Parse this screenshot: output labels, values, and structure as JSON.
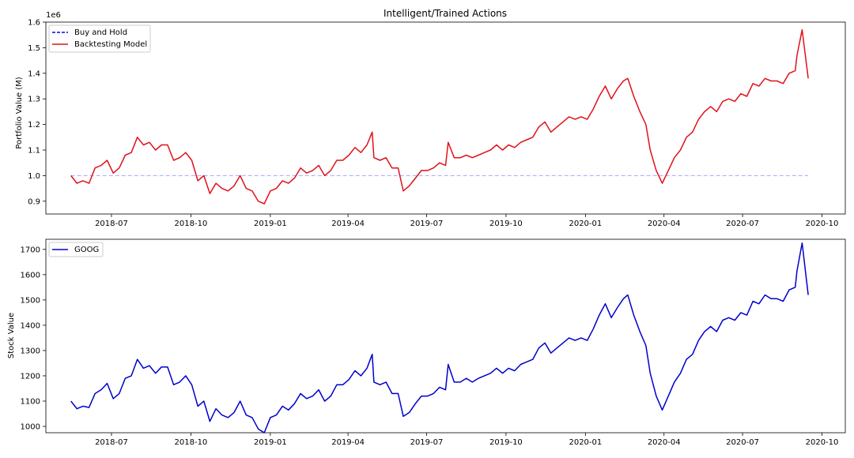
{
  "chart_data": [
    {
      "type": "line",
      "title": "Intelligent/Trained Actions",
      "xlabel": "",
      "ylabel": "Portfolio Value (M)",
      "y_offset_text": "1e6",
      "xlim": [
        "2018-04-16",
        "2020-10-28"
      ],
      "ylim": [
        0.85,
        1.6
      ],
      "x_ticks": [
        "2018-07",
        "2018-10",
        "2019-01",
        "2019-04",
        "2019-07",
        "2019-10",
        "2020-01",
        "2020-04",
        "2020-07",
        "2020-10"
      ],
      "y_ticks": [
        "0.9",
        "1.0",
        "1.1",
        "1.2",
        "1.3",
        "1.4",
        "1.5",
        "1.6"
      ],
      "y_tick_values": [
        0.9,
        1.0,
        1.1,
        1.2,
        1.3,
        1.4,
        1.5,
        1.6
      ],
      "grid": false,
      "legend_position": "top-left",
      "series": [
        {
          "name": "Buy and Hold",
          "color": "#0000ff",
          "style": "dashed",
          "x": [
            "2018-05-15",
            "2020-09-15"
          ],
          "y": [
            1.0,
            1.0
          ]
        },
        {
          "name": "Backtesting Model",
          "color": "#e0111a",
          "style": "solid",
          "x": [
            "2018-05-15",
            "2018-05-22",
            "2018-05-29",
            "2018-06-05",
            "2018-06-12",
            "2018-06-19",
            "2018-06-26",
            "2018-07-03",
            "2018-07-10",
            "2018-07-17",
            "2018-07-24",
            "2018-07-31",
            "2018-08-07",
            "2018-08-14",
            "2018-08-21",
            "2018-08-28",
            "2018-09-04",
            "2018-09-11",
            "2018-09-18",
            "2018-09-25",
            "2018-10-02",
            "2018-10-09",
            "2018-10-16",
            "2018-10-23",
            "2018-10-30",
            "2018-11-06",
            "2018-11-13",
            "2018-11-20",
            "2018-11-27",
            "2018-12-04",
            "2018-12-11",
            "2018-12-18",
            "2018-12-25",
            "2019-01-01",
            "2019-01-08",
            "2019-01-15",
            "2019-01-22",
            "2019-01-29",
            "2019-02-05",
            "2019-02-12",
            "2019-02-19",
            "2019-02-26",
            "2019-03-05",
            "2019-03-12",
            "2019-03-19",
            "2019-03-26",
            "2019-04-02",
            "2019-04-09",
            "2019-04-16",
            "2019-04-23",
            "2019-04-29",
            "2019-05-01",
            "2019-05-08",
            "2019-05-15",
            "2019-05-22",
            "2019-05-29",
            "2019-06-04",
            "2019-06-11",
            "2019-06-18",
            "2019-06-25",
            "2019-07-02",
            "2019-07-09",
            "2019-07-16",
            "2019-07-23",
            "2019-07-26",
            "2019-08-02",
            "2019-08-09",
            "2019-08-16",
            "2019-08-23",
            "2019-08-30",
            "2019-09-06",
            "2019-09-13",
            "2019-09-20",
            "2019-09-27",
            "2019-10-04",
            "2019-10-11",
            "2019-10-18",
            "2019-10-25",
            "2019-11-01",
            "2019-11-08",
            "2019-11-15",
            "2019-11-22",
            "2019-11-29",
            "2019-12-06",
            "2019-12-13",
            "2019-12-20",
            "2019-12-27",
            "2020-01-03",
            "2020-01-10",
            "2020-01-17",
            "2020-01-24",
            "2020-01-31",
            "2020-02-07",
            "2020-02-14",
            "2020-02-19",
            "2020-02-26",
            "2020-03-04",
            "2020-03-11",
            "2020-03-16",
            "2020-03-23",
            "2020-03-30",
            "2020-04-06",
            "2020-04-13",
            "2020-04-20",
            "2020-04-27",
            "2020-05-04",
            "2020-05-11",
            "2020-05-18",
            "2020-05-25",
            "2020-06-01",
            "2020-06-08",
            "2020-06-15",
            "2020-06-22",
            "2020-06-29",
            "2020-07-06",
            "2020-07-13",
            "2020-07-20",
            "2020-07-27",
            "2020-08-03",
            "2020-08-10",
            "2020-08-17",
            "2020-08-24",
            "2020-08-31",
            "2020-09-02",
            "2020-09-08",
            "2020-09-15"
          ],
          "y": [
            1.0,
            0.97,
            0.98,
            0.97,
            1.03,
            1.04,
            1.06,
            1.01,
            1.03,
            1.08,
            1.09,
            1.15,
            1.12,
            1.13,
            1.1,
            1.12,
            1.12,
            1.06,
            1.07,
            1.09,
            1.06,
            0.98,
            1.0,
            0.93,
            0.97,
            0.95,
            0.94,
            0.96,
            1.0,
            0.95,
            0.94,
            0.9,
            0.89,
            0.94,
            0.95,
            0.98,
            0.97,
            0.99,
            1.03,
            1.01,
            1.02,
            1.04,
            1.0,
            1.02,
            1.06,
            1.06,
            1.08,
            1.11,
            1.09,
            1.12,
            1.17,
            1.07,
            1.06,
            1.07,
            1.03,
            1.03,
            0.94,
            0.96,
            0.99,
            1.02,
            1.02,
            1.03,
            1.05,
            1.04,
            1.13,
            1.07,
            1.07,
            1.08,
            1.07,
            1.08,
            1.09,
            1.1,
            1.12,
            1.1,
            1.12,
            1.11,
            1.13,
            1.14,
            1.15,
            1.19,
            1.21,
            1.17,
            1.19,
            1.21,
            1.23,
            1.22,
            1.23,
            1.22,
            1.26,
            1.31,
            1.35,
            1.3,
            1.34,
            1.37,
            1.38,
            1.31,
            1.25,
            1.2,
            1.1,
            1.02,
            0.97,
            1.02,
            1.07,
            1.1,
            1.15,
            1.17,
            1.22,
            1.25,
            1.27,
            1.25,
            1.29,
            1.3,
            1.29,
            1.32,
            1.31,
            1.36,
            1.35,
            1.38,
            1.37,
            1.37,
            1.36,
            1.4,
            1.41,
            1.47,
            1.57,
            1.38
          ]
        }
      ]
    },
    {
      "type": "line",
      "title": "",
      "xlabel": "",
      "ylabel": "Stock Value",
      "xlim": [
        "2018-04-16",
        "2020-10-28"
      ],
      "ylim": [
        975,
        1740
      ],
      "x_ticks": [
        "2018-07",
        "2018-10",
        "2019-01",
        "2019-04",
        "2019-07",
        "2019-10",
        "2020-01",
        "2020-04",
        "2020-07",
        "2020-10"
      ],
      "y_ticks": [
        "1000",
        "1100",
        "1200",
        "1300",
        "1400",
        "1500",
        "1600",
        "1700"
      ],
      "y_tick_values": [
        1000,
        1100,
        1200,
        1300,
        1400,
        1500,
        1600,
        1700
      ],
      "grid": false,
      "legend_position": "top-left",
      "series": [
        {
          "name": "GOOG",
          "color": "#0000cc",
          "style": "solid",
          "x": [
            "2018-05-15",
            "2018-05-22",
            "2018-05-29",
            "2018-06-05",
            "2018-06-12",
            "2018-06-19",
            "2018-06-26",
            "2018-07-03",
            "2018-07-10",
            "2018-07-17",
            "2018-07-24",
            "2018-07-31",
            "2018-08-07",
            "2018-08-14",
            "2018-08-21",
            "2018-08-28",
            "2018-09-04",
            "2018-09-11",
            "2018-09-18",
            "2018-09-25",
            "2018-10-02",
            "2018-10-09",
            "2018-10-16",
            "2018-10-23",
            "2018-10-30",
            "2018-11-06",
            "2018-11-13",
            "2018-11-20",
            "2018-11-27",
            "2018-12-04",
            "2018-12-11",
            "2018-12-18",
            "2018-12-25",
            "2019-01-01",
            "2019-01-08",
            "2019-01-15",
            "2019-01-22",
            "2019-01-29",
            "2019-02-05",
            "2019-02-12",
            "2019-02-19",
            "2019-02-26",
            "2019-03-05",
            "2019-03-12",
            "2019-03-19",
            "2019-03-26",
            "2019-04-02",
            "2019-04-09",
            "2019-04-16",
            "2019-04-23",
            "2019-04-29",
            "2019-05-01",
            "2019-05-08",
            "2019-05-15",
            "2019-05-22",
            "2019-05-29",
            "2019-06-04",
            "2019-06-11",
            "2019-06-18",
            "2019-06-25",
            "2019-07-02",
            "2019-07-09",
            "2019-07-16",
            "2019-07-23",
            "2019-07-26",
            "2019-08-02",
            "2019-08-09",
            "2019-08-16",
            "2019-08-23",
            "2019-08-30",
            "2019-09-06",
            "2019-09-13",
            "2019-09-20",
            "2019-09-27",
            "2019-10-04",
            "2019-10-11",
            "2019-10-18",
            "2019-10-25",
            "2019-11-01",
            "2019-11-08",
            "2019-11-15",
            "2019-11-22",
            "2019-11-29",
            "2019-12-06",
            "2019-12-13",
            "2019-12-20",
            "2019-12-27",
            "2020-01-03",
            "2020-01-10",
            "2020-01-17",
            "2020-01-24",
            "2020-01-31",
            "2020-02-07",
            "2020-02-14",
            "2020-02-19",
            "2020-02-26",
            "2020-03-04",
            "2020-03-11",
            "2020-03-16",
            "2020-03-23",
            "2020-03-30",
            "2020-04-06",
            "2020-04-13",
            "2020-04-20",
            "2020-04-27",
            "2020-05-04",
            "2020-05-11",
            "2020-05-18",
            "2020-05-25",
            "2020-06-01",
            "2020-06-08",
            "2020-06-15",
            "2020-06-22",
            "2020-06-29",
            "2020-07-06",
            "2020-07-13",
            "2020-07-20",
            "2020-07-27",
            "2020-08-03",
            "2020-08-10",
            "2020-08-17",
            "2020-08-24",
            "2020-08-31",
            "2020-09-02",
            "2020-09-08",
            "2020-09-15"
          ],
          "y": [
            1100,
            1070,
            1080,
            1075,
            1130,
            1145,
            1170,
            1110,
            1130,
            1190,
            1200,
            1265,
            1230,
            1240,
            1210,
            1235,
            1235,
            1165,
            1175,
            1200,
            1165,
            1080,
            1100,
            1020,
            1070,
            1045,
            1035,
            1055,
            1100,
            1045,
            1035,
            990,
            975,
            1035,
            1045,
            1080,
            1065,
            1090,
            1130,
            1110,
            1120,
            1145,
            1100,
            1120,
            1165,
            1165,
            1185,
            1220,
            1200,
            1230,
            1285,
            1175,
            1165,
            1175,
            1130,
            1130,
            1040,
            1055,
            1090,
            1120,
            1120,
            1130,
            1155,
            1145,
            1245,
            1175,
            1175,
            1190,
            1175,
            1190,
            1200,
            1210,
            1230,
            1210,
            1230,
            1220,
            1245,
            1255,
            1265,
            1310,
            1330,
            1290,
            1310,
            1330,
            1350,
            1340,
            1350,
            1340,
            1385,
            1440,
            1485,
            1430,
            1470,
            1505,
            1520,
            1440,
            1375,
            1320,
            1210,
            1120,
            1065,
            1120,
            1175,
            1210,
            1265,
            1285,
            1340,
            1375,
            1395,
            1375,
            1420,
            1430,
            1420,
            1450,
            1440,
            1495,
            1485,
            1520,
            1505,
            1505,
            1495,
            1540,
            1550,
            1615,
            1725,
            1520
          ]
        }
      ]
    }
  ]
}
